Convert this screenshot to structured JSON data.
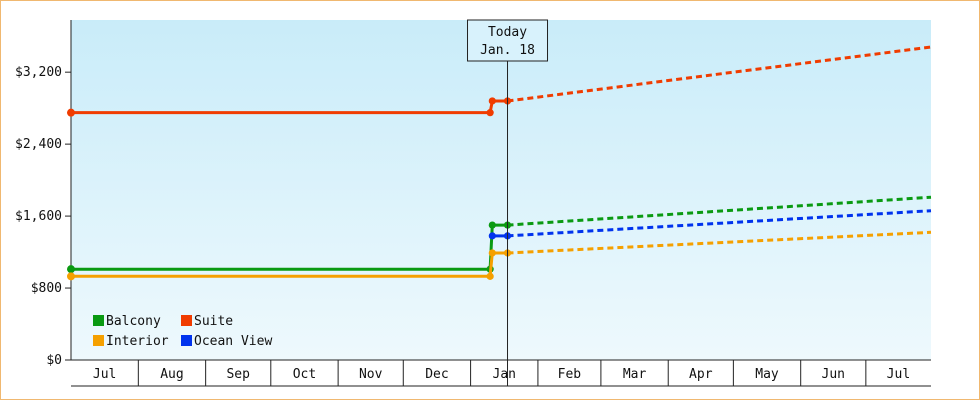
{
  "colors": {
    "frame": "#f0b870",
    "plot_bg_top": "#c9ecf9",
    "plot_bg_bottom": "#eef9fd",
    "axis": "#222222",
    "Balcony": "#0a9a12",
    "Suite": "#f03c00",
    "Interior": "#f5a000",
    "Ocean View": "#0033ee"
  },
  "chart_data": {
    "type": "line",
    "title": "",
    "xlabel": "",
    "ylabel": "",
    "month_labels": [
      "Jul",
      "Aug",
      "Sep",
      "Oct",
      "Nov",
      "Dec",
      "Jan",
      "Feb",
      "Mar",
      "Apr",
      "May",
      "Jun",
      "Jul"
    ],
    "y_ticks": [
      0,
      800,
      1600,
      2400,
      3200
    ],
    "y_tick_labels": [
      "$0",
      "$800",
      "$1,600",
      "$2,400",
      "$3,200"
    ],
    "ylim": [
      0,
      3780
    ],
    "x_domain": [
      "2023-07-01",
      "2024-07-31"
    ],
    "today": {
      "label_line1": "Today",
      "label_line2": "Jan. 18",
      "date": "2024-01-18"
    },
    "legend": {
      "placement": "bottom-left",
      "order": [
        "Balcony",
        "Suite",
        "Interior",
        "Ocean View"
      ]
    },
    "grid": false,
    "series": [
      {
        "name": "Balcony",
        "historical": [
          [
            "2023-07-01",
            1010
          ],
          [
            "2024-01-10",
            1010
          ],
          [
            "2024-01-11",
            1500
          ],
          [
            "2024-01-18",
            1500
          ]
        ],
        "forecast": [
          [
            "2024-01-18",
            1500
          ],
          [
            "2024-07-31",
            1810
          ]
        ]
      },
      {
        "name": "Suite",
        "historical": [
          [
            "2023-07-01",
            2750
          ],
          [
            "2024-01-10",
            2750
          ],
          [
            "2024-01-11",
            2880
          ],
          [
            "2024-01-18",
            2880
          ]
        ],
        "forecast": [
          [
            "2024-01-18",
            2880
          ],
          [
            "2024-07-31",
            3480
          ]
        ]
      },
      {
        "name": "Interior",
        "historical": [
          [
            "2023-07-01",
            930
          ],
          [
            "2024-01-10",
            930
          ],
          [
            "2024-01-11",
            1190
          ],
          [
            "2024-01-18",
            1190
          ]
        ],
        "forecast": [
          [
            "2024-01-18",
            1190
          ],
          [
            "2024-07-31",
            1420
          ]
        ]
      },
      {
        "name": "Ocean View",
        "historical": [
          [
            "2024-01-11",
            1380
          ],
          [
            "2024-01-18",
            1380
          ]
        ],
        "forecast": [
          [
            "2024-01-18",
            1380
          ],
          [
            "2024-07-31",
            1660
          ]
        ]
      }
    ]
  }
}
